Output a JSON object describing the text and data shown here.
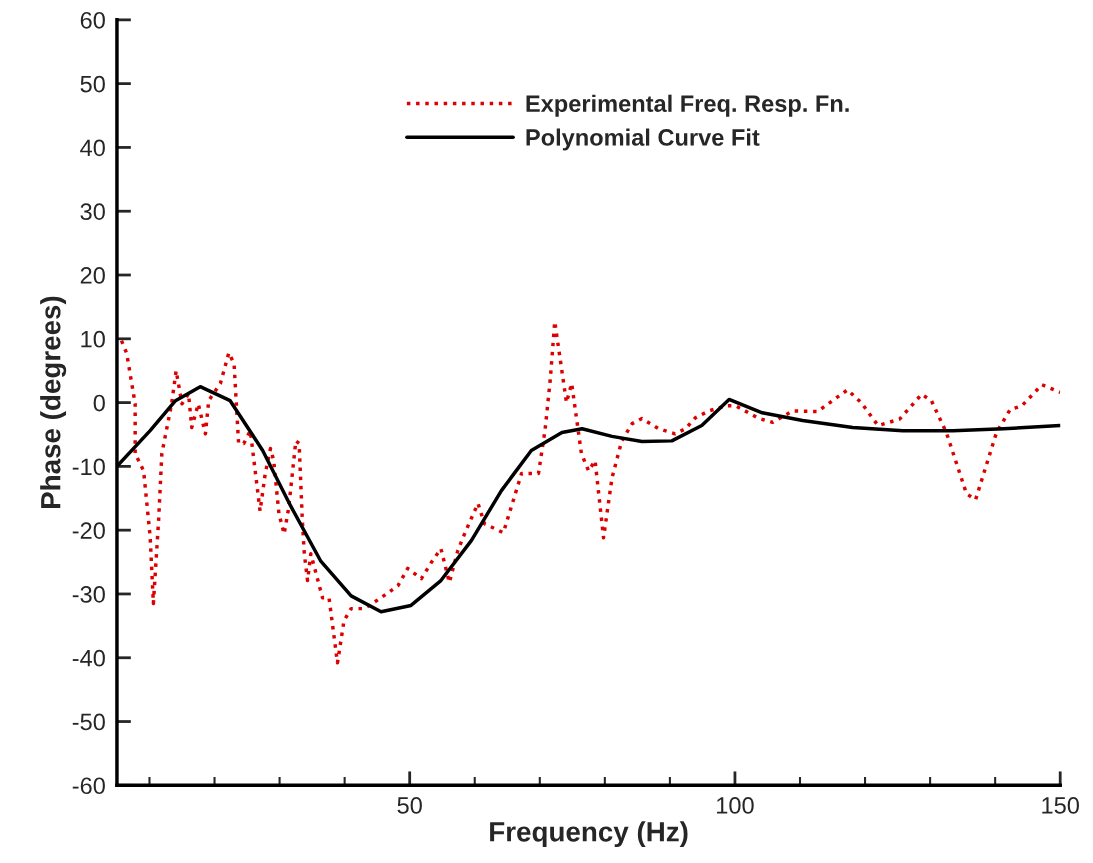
{
  "chart_data": {
    "type": "line",
    "xlabel": "Frequency (Hz)",
    "ylabel": "Phase (degrees)",
    "xlim": [
      5,
      150
    ],
    "ylim": [
      -60,
      60
    ],
    "xticks": [
      {
        "value": 10,
        "label": null
      },
      {
        "value": 20,
        "label": null
      },
      {
        "value": 30,
        "label": null
      },
      {
        "value": 40,
        "label": null
      },
      50,
      {
        "value": 60,
        "label": null
      },
      {
        "value": 70,
        "label": null
      },
      {
        "value": 80,
        "label": null
      },
      {
        "value": 90,
        "label": null
      },
      100,
      {
        "value": 110,
        "label": null
      },
      {
        "value": 120,
        "label": null
      },
      {
        "value": 130,
        "label": null
      },
      {
        "value": 140,
        "label": null
      },
      150
    ],
    "yticks": [
      -60,
      -50,
      -40,
      -30,
      -20,
      -10,
      0,
      10,
      20,
      30,
      40,
      50,
      60
    ],
    "grid": false,
    "legend": "top right",
    "marker": "none",
    "series": [
      {
        "name": "Experimental Freq. Resp. Fn.",
        "color": "#dd0000",
        "line_style": "dotted",
        "x": [
          5.7,
          6.5,
          7.8,
          7.8,
          9.1,
          10.1,
          10.6,
          11.4,
          11.9,
          13.4,
          14.1,
          15,
          16,
          16.5,
          17.5,
          18.6,
          19.1,
          20.9,
          22.2,
          23,
          23.7,
          24.5,
          25.5,
          27,
          27.8,
          28.6,
          29.1,
          29.9,
          30.7,
          31.4,
          32.5,
          33,
          33.5,
          33.8,
          34.3,
          34.8,
          36.6,
          37.6,
          38.9,
          39.9,
          41,
          42,
          43,
          45.6,
          48.2,
          49.7,
          51.8,
          53.3,
          54.8,
          56.1,
          57.4,
          58.5,
          60.5,
          61.5,
          64.4,
          67.2,
          69.8,
          70.8,
          71.6,
          72.3,
          74.1,
          74.9,
          76.4,
          77.5,
          78.5,
          79.8,
          81.1,
          82.6,
          84.2,
          85.7,
          88.3,
          90.8,
          92.4,
          93.9,
          96,
          98.6,
          100.1,
          103.7,
          105.8,
          108.9,
          112.7,
          117.3,
          119.4,
          122,
          125.3,
          128.7,
          130.2,
          132.5,
          135.6,
          137,
          140.2,
          142.3,
          144.1,
          147.2,
          150
        ],
        "values": [
          9.7,
          7.7,
          -0.2,
          -8,
          -10.7,
          -21,
          -31.5,
          -18.5,
          -8,
          -0.2,
          5,
          -0.2,
          1.4,
          -3.9,
          -0.2,
          -4.9,
          0.3,
          3,
          7.8,
          6.1,
          -6.4,
          -6.4,
          -4.4,
          -17,
          -11.1,
          -7.2,
          -9.1,
          -17.4,
          -20.6,
          -16.5,
          -6,
          -6.4,
          -18.5,
          -23.7,
          -27.9,
          -23.7,
          -30.6,
          -30.6,
          -40.8,
          -34.2,
          -32.3,
          -32.3,
          -32.3,
          -30.6,
          -28.7,
          -26,
          -27.6,
          -25.1,
          -22.9,
          -28.2,
          -23.2,
          -20.4,
          -15.8,
          -19,
          -20.4,
          -11.1,
          -11.1,
          -4.4,
          3.5,
          12.7,
          0,
          3,
          -8,
          -10.7,
          -9.1,
          -21.2,
          -11.8,
          -6,
          -3.3,
          -2.5,
          -4.1,
          -4.9,
          -4.1,
          -2.4,
          -1.3,
          -0.5,
          -0.5,
          -2.5,
          -3.1,
          -1.3,
          -1.4,
          2,
          0,
          -3.6,
          -2.6,
          1.3,
          0.3,
          -4.7,
          -14.3,
          -15.2,
          -4.7,
          -1.1,
          -0.5,
          2.8,
          1.6
        ]
      },
      {
        "name": "Polynomial Curve Fit",
        "color": "#000000",
        "line_style": "solid",
        "x": [
          5,
          10.1,
          14,
          17.8,
          22.4,
          27.4,
          31.7,
          36.3,
          41,
          45.6,
          50.2,
          54.8,
          59.5,
          64.1,
          68.7,
          73.4,
          76.5,
          81.1,
          85.7,
          90.3,
          94.9,
          99.1,
          104.2,
          110.4,
          118.1,
          125.8,
          133.5,
          141.3,
          150
        ],
        "values": [
          -10,
          -4.4,
          0.3,
          2.5,
          0.3,
          -7.5,
          -16.2,
          -24.8,
          -30.3,
          -32.8,
          -31.8,
          -27.9,
          -21.6,
          -13.8,
          -7.5,
          -4.7,
          -4.1,
          -5.3,
          -6.1,
          -6,
          -3.6,
          0.5,
          -1.6,
          -2.8,
          -3.9,
          -4.4,
          -4.4,
          -4.1,
          -3.6
        ]
      }
    ]
  }
}
